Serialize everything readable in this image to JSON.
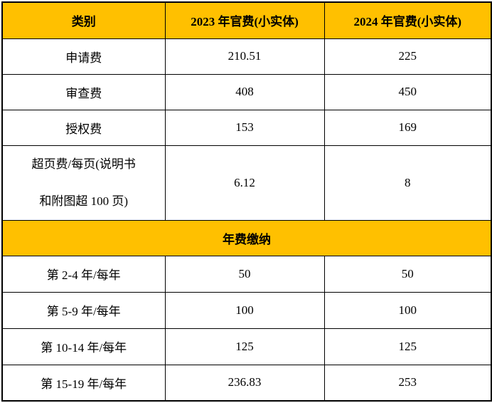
{
  "table": {
    "title_semantic": "patent-official-fee-table",
    "colors": {
      "header_bg": "#FFC000",
      "border": "#000000",
      "cell_bg": "#FFFFFF",
      "text": "#000000"
    },
    "header": {
      "category": "类别",
      "fee_2023": "2023 年官费(小实体)",
      "fee_2024": "2024 年官费(小实体)"
    },
    "rows": [
      {
        "label": "申请费",
        "fee2023": "210.51",
        "fee2024": "225"
      },
      {
        "label": "审查费",
        "fee2023": "408",
        "fee2024": "450"
      },
      {
        "label": "授权费",
        "fee2023": "153",
        "fee2024": "169"
      },
      {
        "label": "超页费/每页(说明书\n和附图超 100 页)",
        "fee2023": "6.12",
        "fee2024": "8"
      }
    ],
    "section_header": "年费缴纳",
    "annuity_rows": [
      {
        "label": "第 2-4 年/每年",
        "fee2023": "50",
        "fee2024": "50"
      },
      {
        "label": "第 5-9 年/每年",
        "fee2023": "100",
        "fee2024": "100"
      },
      {
        "label": "第 10-14 年/每年",
        "fee2023": "125",
        "fee2024": "125"
      },
      {
        "label": "第 15-19 年/每年",
        "fee2023": "236.83",
        "fee2024": "253"
      }
    ]
  }
}
